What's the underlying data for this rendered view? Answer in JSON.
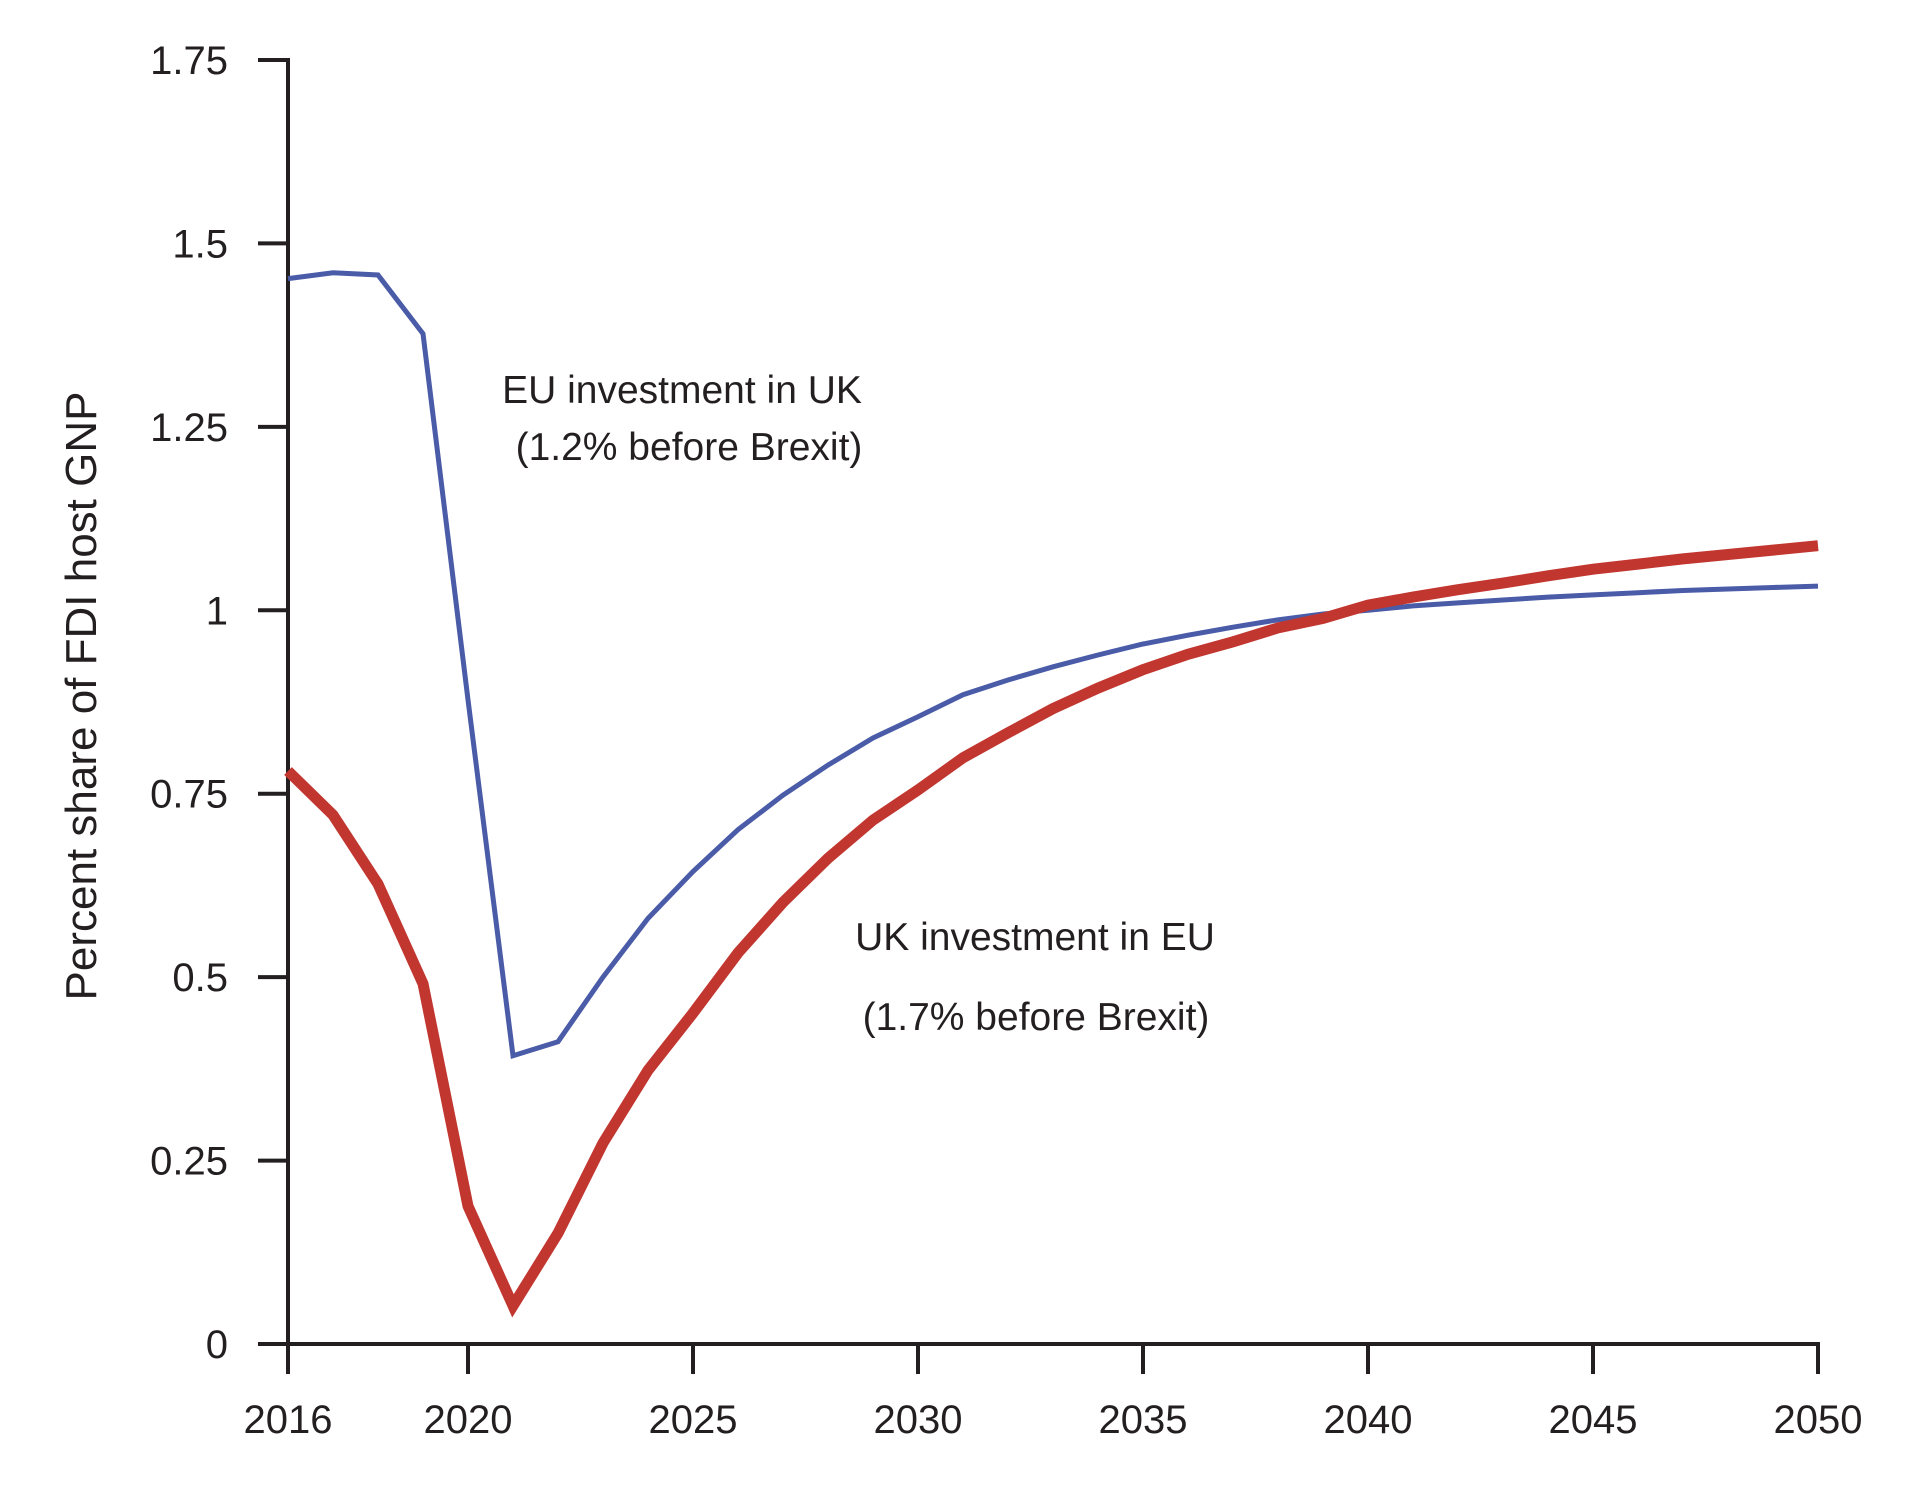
{
  "chart_data": {
    "type": "line",
    "title": "",
    "xlabel": "",
    "ylabel": "Percent share of FDI host GNP",
    "xlim": [
      2016,
      2050
    ],
    "ylim": [
      0,
      1.75
    ],
    "grid": false,
    "legend": "none (inline annotations)",
    "x_ticks": [
      "2016",
      "2020",
      "2025",
      "2030",
      "2035",
      "2040",
      "2045",
      "2050"
    ],
    "x_tick_values": [
      2016,
      2020,
      2025,
      2030,
      2035,
      2040,
      2045,
      2050
    ],
    "y_ticks": [
      "0",
      "0.25",
      "0.5",
      "0.75",
      "1",
      "1.25",
      "1.5",
      "1.75"
    ],
    "y_tick_values": [
      0,
      0.25,
      0.5,
      0.75,
      1,
      1.25,
      1.5,
      1.75
    ],
    "x": [
      2016,
      2017,
      2018,
      2019,
      2020,
      2021,
      2022,
      2023,
      2024,
      2025,
      2026,
      2027,
      2028,
      2029,
      2030,
      2031,
      2032,
      2033,
      2034,
      2035,
      2036,
      2037,
      2038,
      2039,
      2040,
      2041,
      2042,
      2043,
      2044,
      2045,
      2046,
      2047,
      2048,
      2049,
      2050
    ],
    "series": [
      {
        "name": "EU investment in UK",
        "color": "#4a5ba8",
        "values": [
          1.452,
          1.46,
          1.457,
          1.377,
          0.878,
          0.393,
          0.412,
          0.5,
          0.58,
          0.644,
          0.701,
          0.748,
          0.789,
          0.826,
          0.855,
          0.885,
          0.905,
          0.923,
          0.939,
          0.954,
          0.966,
          0.977,
          0.987,
          0.995,
          1.0,
          1.006,
          1.01,
          1.014,
          1.018,
          1.021,
          1.024,
          1.027,
          1.029,
          1.031,
          1.033
        ]
      },
      {
        "name": "UK investment in EU",
        "color": "#c23630",
        "values": [
          0.781,
          0.721,
          0.627,
          0.491,
          0.188,
          0.052,
          0.151,
          0.274,
          0.373,
          0.451,
          0.533,
          0.602,
          0.662,
          0.714,
          0.755,
          0.799,
          0.833,
          0.866,
          0.894,
          0.919,
          0.94,
          0.957,
          0.976,
          0.989,
          1.007,
          1.018,
          1.028,
          1.037,
          1.047,
          1.056,
          1.063,
          1.07,
          1.076,
          1.082,
          1.088
        ]
      }
    ],
    "annotations": [
      {
        "series": "EU investment in UK",
        "line1": "EU investment in UK",
        "line2": "(1.2% before Brexit)"
      },
      {
        "series": "UK investment in EU",
        "line1": "UK investment in EU",
        "line2": "(1.7% before Brexit)"
      }
    ]
  }
}
